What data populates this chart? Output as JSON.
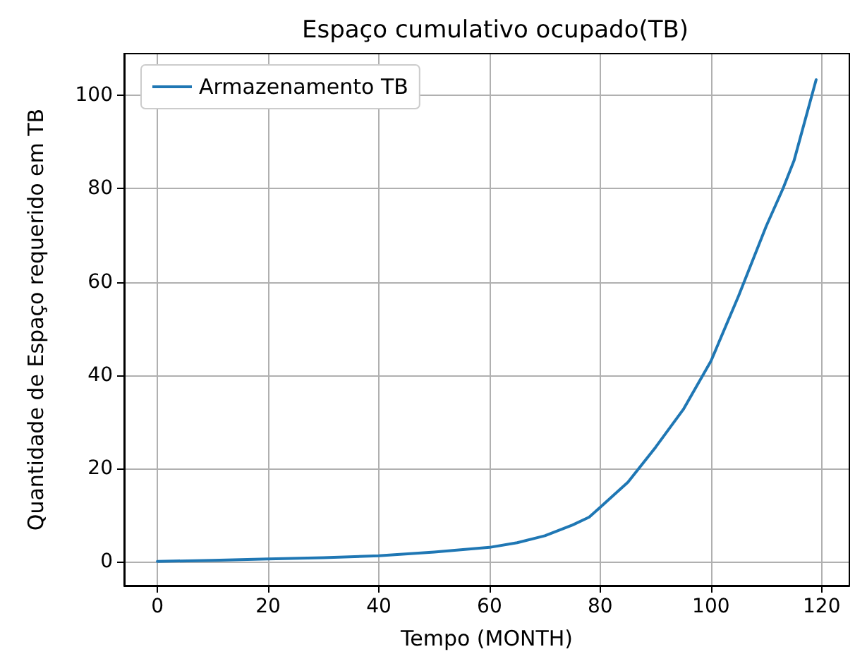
{
  "chart_data": {
    "type": "line",
    "title": "Espaço cumulativo ocupado(TB)",
    "xlabel": "Tempo (MONTH)",
    "ylabel": "Quantidade de Espaço requerido em TB",
    "x": [
      0,
      10,
      20,
      30,
      40,
      50,
      60,
      65,
      70,
      75,
      78,
      80,
      85,
      90,
      95,
      100,
      105,
      110,
      113,
      115,
      119
    ],
    "series": [
      {
        "name": "Armazenamento TB",
        "color": "#1f77b4",
        "values": [
          0,
          0.2,
          0.5,
          0.8,
          1.2,
          2,
          3,
          4,
          5.5,
          7.8,
          9.5,
          11.6,
          17,
          24.5,
          32.6,
          43,
          57,
          72,
          80,
          86,
          103.4
        ]
      }
    ],
    "xlim": [
      -6,
      125
    ],
    "ylim": [
      -5.2,
      109
    ],
    "xticks": [
      0,
      20,
      40,
      60,
      80,
      100,
      120
    ],
    "yticks": [
      0,
      20,
      40,
      60,
      80,
      100
    ],
    "grid": true,
    "legend": "top left",
    "line_style": "solid",
    "marker": "none"
  }
}
